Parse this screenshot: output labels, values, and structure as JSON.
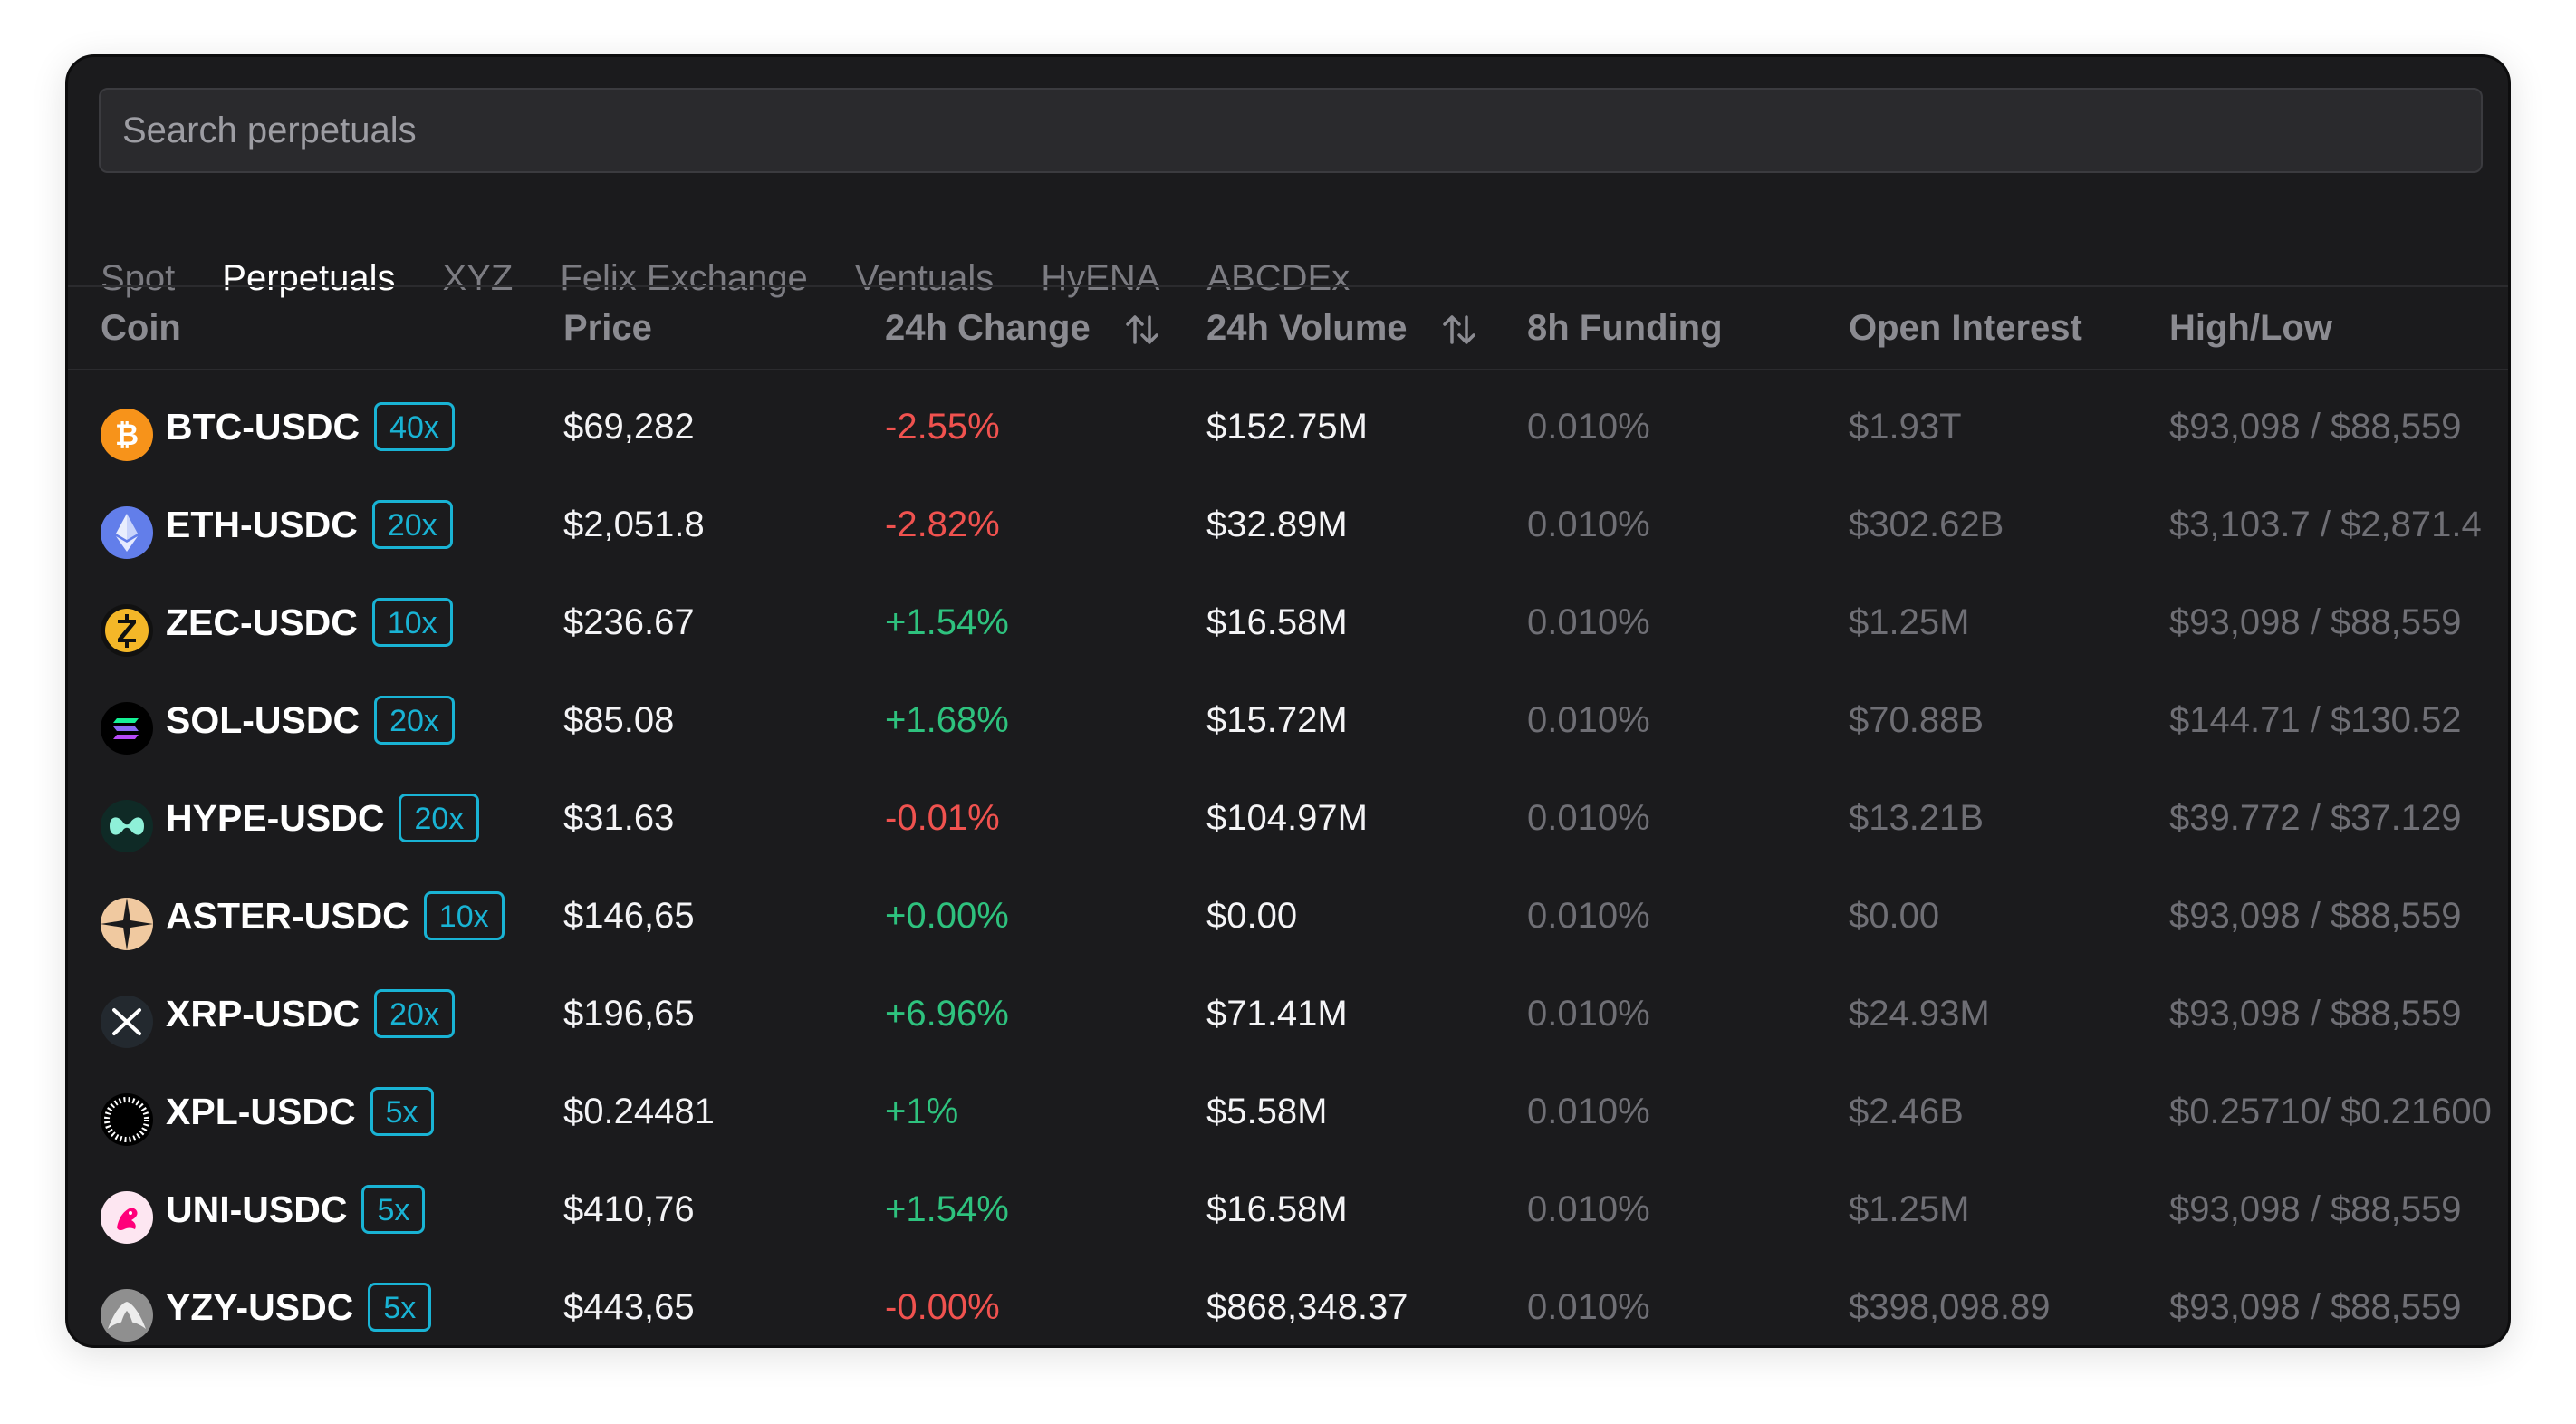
{
  "search": {
    "placeholder": "Search perpetuals"
  },
  "tabs": [
    {
      "label": "Spot",
      "active": false
    },
    {
      "label": "Perpetuals",
      "active": true
    },
    {
      "label": "XYZ",
      "active": false
    },
    {
      "label": "Felix Exchange",
      "active": false
    },
    {
      "label": "Ventuals",
      "active": false
    },
    {
      "label": "HyENA",
      "active": false
    },
    {
      "label": "ABCDEx",
      "active": false
    }
  ],
  "columns": {
    "coin": "Coin",
    "price": "Price",
    "change": "24h Change",
    "volume": "24h Volume",
    "funding": "8h Funding",
    "oi": "Open Interest",
    "highlow": "High/Low"
  },
  "colors": {
    "accent": "#19b3d4",
    "negative": "#f0524f",
    "positive": "#2ec27e"
  },
  "rows": [
    {
      "icon": "btc-icon",
      "coin": "BTC-USDC",
      "lev": "40x",
      "price": "$69,282",
      "change": "-2.55%",
      "dir": "neg",
      "volume": "$152.75M",
      "funding": "0.010%",
      "oi": "$1.93T",
      "highlow": "$93,098 / $88,559"
    },
    {
      "icon": "eth-icon",
      "coin": "ETH-USDC",
      "lev": "20x",
      "price": "$2,051.8",
      "change": "-2.82%",
      "dir": "neg",
      "volume": "$32.89M",
      "funding": "0.010%",
      "oi": "$302.62B",
      "highlow": "$3,103.7 / $2,871.4"
    },
    {
      "icon": "zec-icon",
      "coin": "ZEC-USDC",
      "lev": "10x",
      "price": "$236.67",
      "change": "+1.54%",
      "dir": "pos",
      "volume": "$16.58M",
      "funding": "0.010%",
      "oi": "$1.25M",
      "highlow": "$93,098 / $88,559"
    },
    {
      "icon": "sol-icon",
      "coin": "SOL-USDC",
      "lev": "20x",
      "price": "$85.08",
      "change": "+1.68%",
      "dir": "pos",
      "volume": "$15.72M",
      "funding": "0.010%",
      "oi": "$70.88B",
      "highlow": "$144.71 / $130.52"
    },
    {
      "icon": "hype-icon",
      "coin": "HYPE-USDC",
      "lev": "20x",
      "price": "$31.63",
      "change": "-0.01%",
      "dir": "neg",
      "volume": "$104.97M",
      "funding": "0.010%",
      "oi": "$13.21B",
      "highlow": "$39.772 / $37.129"
    },
    {
      "icon": "aster-icon",
      "coin": "ASTER-USDC",
      "lev": "10x",
      "price": "$146,65",
      "change": "+0.00%",
      "dir": "pos",
      "volume": "$0.00",
      "funding": "0.010%",
      "oi": "$0.00",
      "highlow": "$93,098 / $88,559"
    },
    {
      "icon": "xrp-icon",
      "coin": "XRP-USDC",
      "lev": "20x",
      "price": "$196,65",
      "change": "+6.96%",
      "dir": "pos",
      "volume": "$71.41M",
      "funding": "0.010%",
      "oi": "$24.93M",
      "highlow": "$93,098 / $88,559"
    },
    {
      "icon": "xpl-icon",
      "coin": "XPL-USDC",
      "lev": "5x",
      "price": "$0.24481",
      "change": "+1%",
      "dir": "pos",
      "volume": "$5.58M",
      "funding": "0.010%",
      "oi": "$2.46B",
      "highlow": "$0.25710/ $0.21600"
    },
    {
      "icon": "uni-icon",
      "coin": "UNI-USDC",
      "lev": "5x",
      "price": "$410,76",
      "change": "+1.54%",
      "dir": "pos",
      "volume": "$16.58M",
      "funding": "0.010%",
      "oi": "$1.25M",
      "highlow": "$93,098 / $88,559"
    },
    {
      "icon": "yzy-icon",
      "coin": "YZY-USDC",
      "lev": "5x",
      "price": "$443,65",
      "change": "-0.00%",
      "dir": "neg",
      "volume": "$868,348.37",
      "funding": "0.010%",
      "oi": "$398,098.89",
      "highlow": "$93,098 / $88,559"
    }
  ]
}
